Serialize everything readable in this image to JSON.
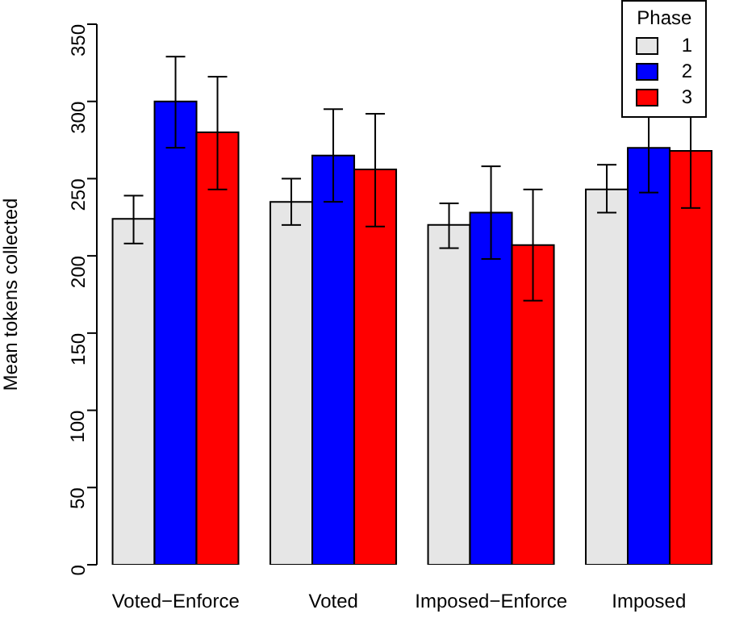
{
  "chart_data": {
    "type": "bar",
    "ylabel": "Mean tokens collected",
    "legend_title": "Phase",
    "legend": "top right",
    "grid": false,
    "categories": [
      "Voted−Enforce",
      "Voted",
      "Imposed−Enforce",
      "Imposed"
    ],
    "ylim": [
      0,
      350
    ],
    "yticks": [
      0,
      50,
      100,
      150,
      200,
      250,
      300,
      350
    ],
    "series": [
      {
        "name": "1",
        "color": "#e6e6e6",
        "values": [
          224,
          235,
          220,
          243
        ],
        "errors": [
          [
            208,
            239
          ],
          [
            220,
            250
          ],
          [
            205,
            234
          ],
          [
            228,
            259
          ]
        ]
      },
      {
        "name": "2",
        "color": "#0000ff",
        "values": [
          300,
          265,
          228,
          270
        ],
        "errors": [
          [
            270,
            329
          ],
          [
            235,
            295
          ],
          [
            198,
            258
          ],
          [
            241,
            299
          ]
        ]
      },
      {
        "name": "3",
        "color": "#ff0000",
        "values": [
          280,
          256,
          207,
          268
        ],
        "errors": [
          [
            243,
            316
          ],
          [
            219,
            292
          ],
          [
            171,
            243
          ],
          [
            231,
            303
          ]
        ]
      }
    ]
  }
}
